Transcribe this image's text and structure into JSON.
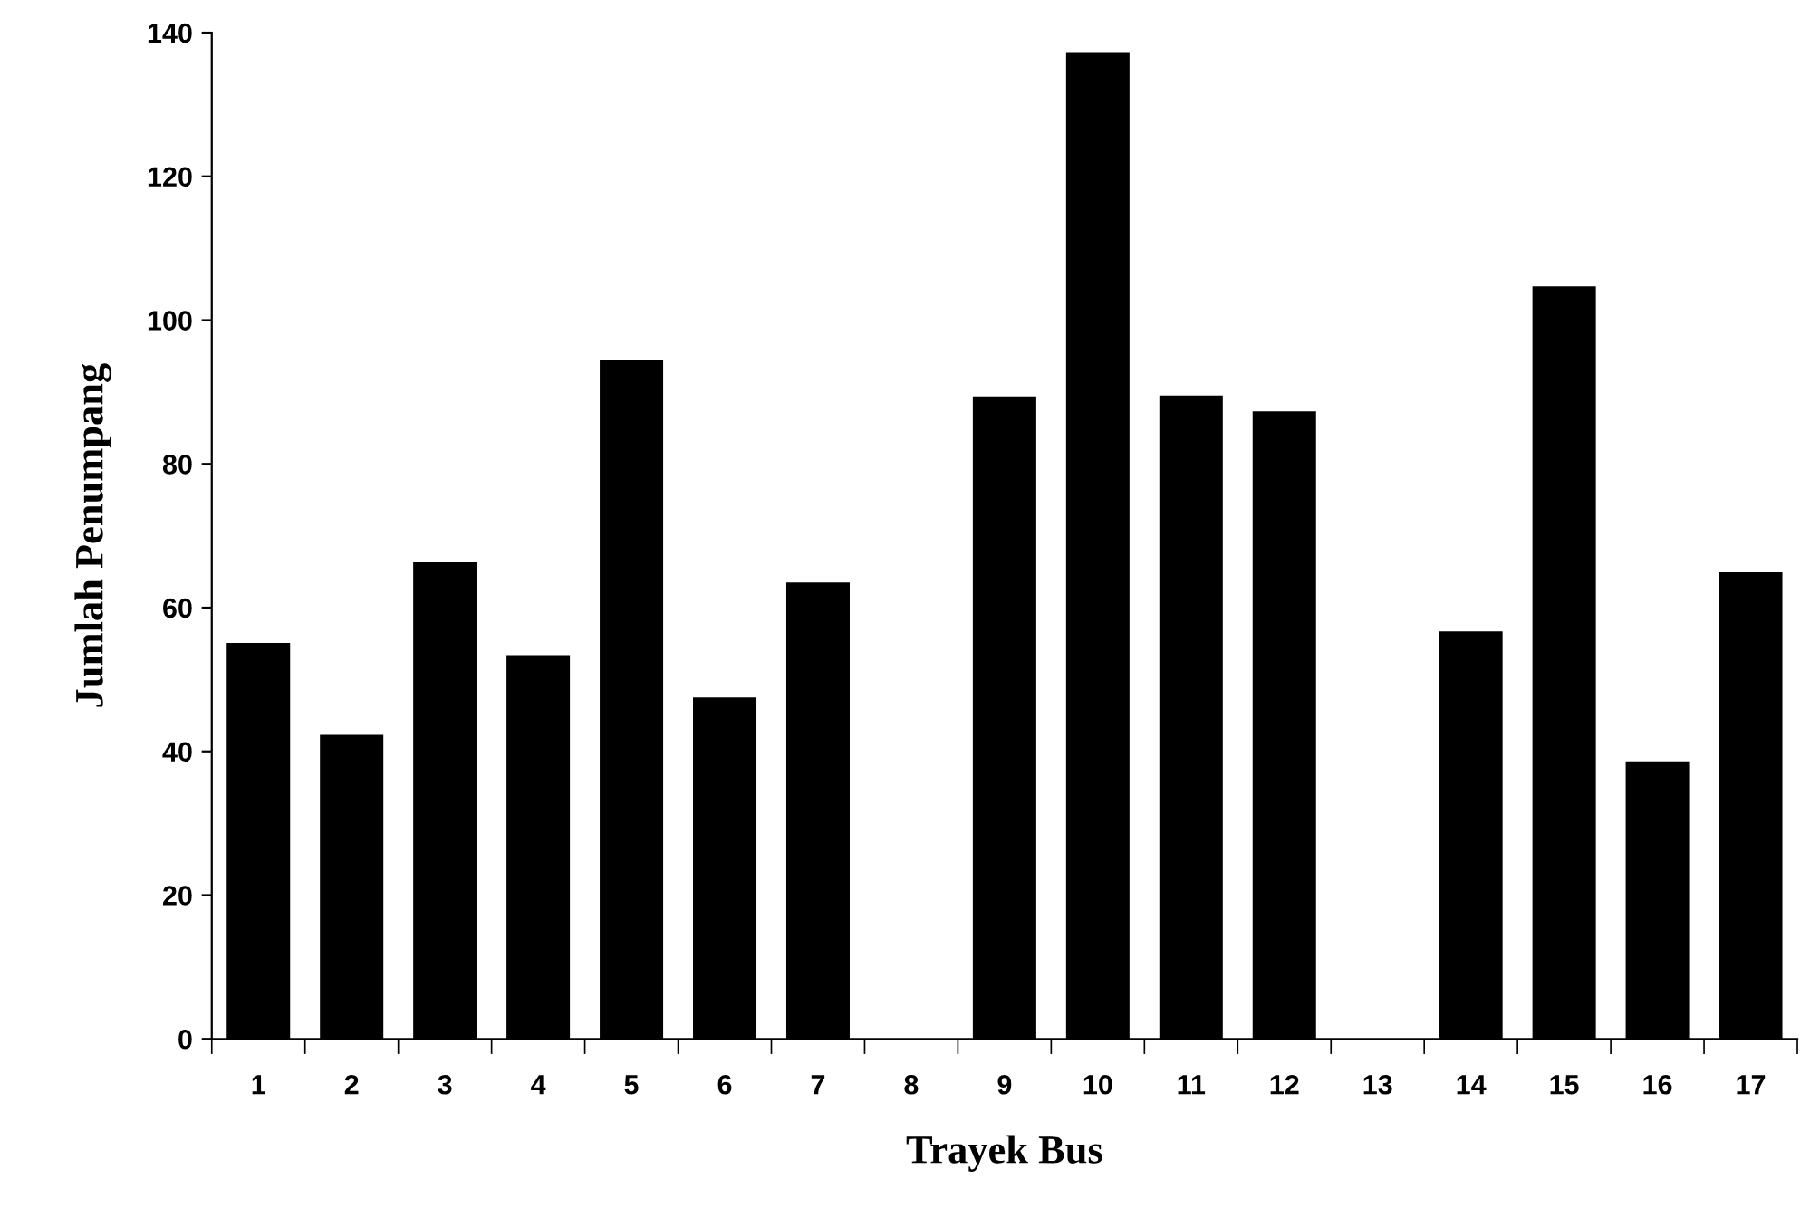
{
  "chart_data": {
    "type": "bar",
    "xlabel": "Trayek Bus",
    "ylabel": "Jumlah Penumpang",
    "categories": [
      "1",
      "2",
      "3",
      "4",
      "5",
      "6",
      "7",
      "8",
      "9",
      "10",
      "11",
      "12",
      "13",
      "14",
      "15",
      "16",
      "17"
    ],
    "values": [
      55.1,
      42.3,
      66.3,
      53.4,
      94.4,
      47.5,
      63.5,
      0,
      89.4,
      137.3,
      89.5,
      87.3,
      0,
      56.7,
      104.7,
      38.6,
      64.9
    ],
    "color": "#000000",
    "ylim": [
      0,
      140
    ],
    "yticks": [
      0,
      20,
      40,
      60,
      80,
      100,
      120,
      140
    ],
    "grid": false,
    "legend": false
  }
}
